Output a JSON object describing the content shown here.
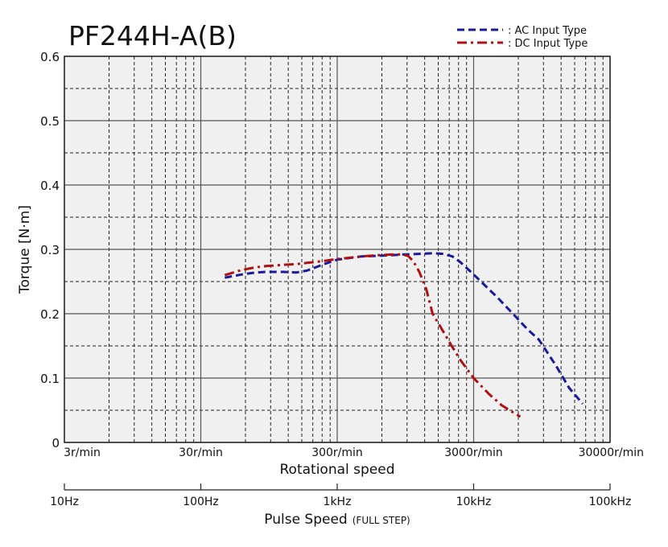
{
  "chart_data": {
    "type": "line",
    "title": "PF244H-A(B)",
    "ylabel": "Torque [N·m]",
    "xlabel": "Rotational speed",
    "xlabel2_main": "Pulse Speed",
    "xlabel2_sub": "(FULL STEP)",
    "x_scale": "log",
    "xlim": [
      3,
      30000
    ],
    "ylim": [
      0,
      0.6
    ],
    "yticks": [
      0,
      0.1,
      0.2,
      0.3,
      0.4,
      0.5,
      0.6
    ],
    "ytick_labels": [
      "0",
      "0.1",
      "0.2",
      "0.3",
      "0.4",
      "0.5",
      "0.6"
    ],
    "xticks": [
      3,
      30,
      300,
      3000,
      30000
    ],
    "xtick_labels": [
      "3r/min",
      "30r/min",
      "300r/min",
      "3000r/min",
      "30000r/min"
    ],
    "x2ticks": [
      10,
      100,
      1000,
      10000,
      100000
    ],
    "x2tick_labels": [
      "10Hz",
      "100Hz",
      "1kHz",
      "10kHz",
      "100kHz"
    ],
    "grid": true,
    "legend_position": "top-right",
    "series": [
      {
        "name": "AC Input Type",
        "color": "#1a1a9c",
        "dash": "dashed",
        "x": [
          15,
          20,
          25,
          30,
          40,
          50,
          60,
          80,
          100,
          150,
          200,
          250,
          300,
          400,
          500,
          600,
          700,
          800,
          1000,
          1500,
          2000,
          2500,
          3000,
          4000,
          5000,
          6300
        ],
        "y": [
          0.256,
          0.261,
          0.264,
          0.265,
          0.265,
          0.264,
          0.267,
          0.277,
          0.284,
          0.289,
          0.29,
          0.291,
          0.292,
          0.293,
          0.294,
          0.293,
          0.289,
          0.28,
          0.261,
          0.225,
          0.197,
          0.175,
          0.16,
          0.12,
          0.085,
          0.06
        ]
      },
      {
        "name": "DC Input Type",
        "color": "#b01010",
        "dash": "dashdot",
        "x": [
          15,
          20,
          25,
          30,
          40,
          50,
          60,
          80,
          100,
          150,
          200,
          250,
          300,
          330,
          360,
          400,
          450,
          500,
          600,
          700,
          800,
          1000,
          1300,
          1600,
          1900,
          2200
        ],
        "y": [
          0.26,
          0.268,
          0.272,
          0.274,
          0.276,
          0.277,
          0.279,
          0.282,
          0.285,
          0.289,
          0.291,
          0.292,
          0.292,
          0.29,
          0.282,
          0.265,
          0.238,
          0.2,
          0.172,
          0.148,
          0.128,
          0.1,
          0.075,
          0.058,
          0.048,
          0.04
        ]
      }
    ]
  }
}
